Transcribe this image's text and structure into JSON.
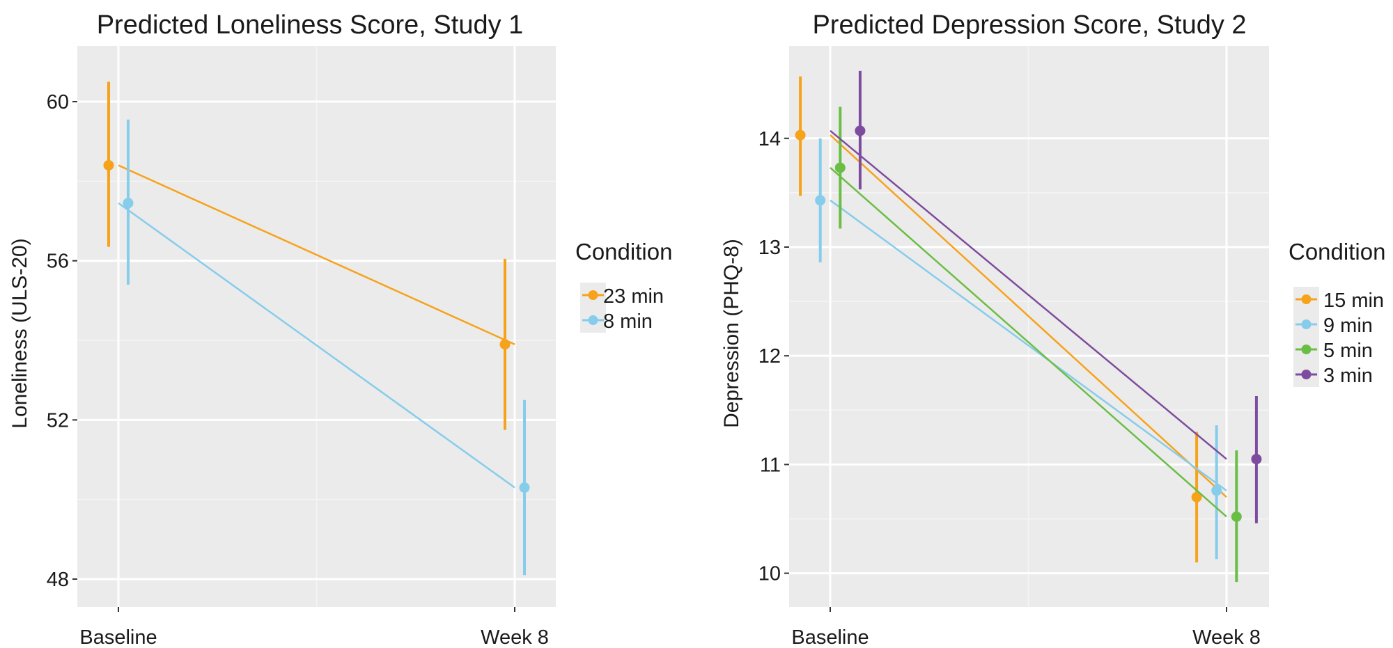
{
  "chart_data": [
    {
      "type": "line",
      "title": "Predicted Loneliness Score, Study 1",
      "xlabel": "",
      "ylabel": "Loneliness (ULS-20)",
      "categories": [
        "Baseline",
        "Week 8"
      ],
      "yticks": [
        48,
        52,
        56,
        60
      ],
      "ylim": [
        47.3,
        61.4
      ],
      "grid": true,
      "legend": {
        "title": "Condition",
        "placement": "right"
      },
      "series": [
        {
          "name": "23 min",
          "color": "#F7A21B",
          "values": [
            58.4,
            53.9
          ],
          "lower": [
            56.35,
            51.75
          ],
          "upper": [
            60.5,
            56.05
          ]
        },
        {
          "name": "8 min",
          "color": "#86CDEB",
          "values": [
            57.45,
            50.3
          ],
          "lower": [
            55.4,
            48.1
          ],
          "upper": [
            59.55,
            52.5
          ]
        }
      ]
    },
    {
      "type": "line",
      "title": "Predicted Depression Score, Study 2",
      "xlabel": "",
      "ylabel": "Depression (PHQ-8)",
      "categories": [
        "Baseline",
        "Week 8"
      ],
      "yticks": [
        10,
        11,
        12,
        13,
        14
      ],
      "ylim": [
        9.69,
        14.85
      ],
      "grid": true,
      "legend": {
        "title": "Condition",
        "placement": "right"
      },
      "series": [
        {
          "name": "15 min",
          "color": "#F7A21B",
          "values": [
            14.03,
            10.7
          ],
          "lower": [
            13.47,
            10.1
          ],
          "upper": [
            14.57,
            11.3
          ]
        },
        {
          "name": "9 min",
          "color": "#86CDEB",
          "values": [
            13.43,
            10.76
          ],
          "lower": [
            12.86,
            10.13
          ],
          "upper": [
            14.0,
            11.36
          ]
        },
        {
          "name": "5 min",
          "color": "#6BBE45",
          "values": [
            13.73,
            10.52
          ],
          "lower": [
            13.17,
            9.92
          ],
          "upper": [
            14.29,
            11.13
          ]
        },
        {
          "name": "3 min",
          "color": "#7E4C9E",
          "values": [
            14.07,
            11.05
          ],
          "lower": [
            13.53,
            10.46
          ],
          "upper": [
            14.62,
            11.63
          ]
        }
      ]
    }
  ]
}
